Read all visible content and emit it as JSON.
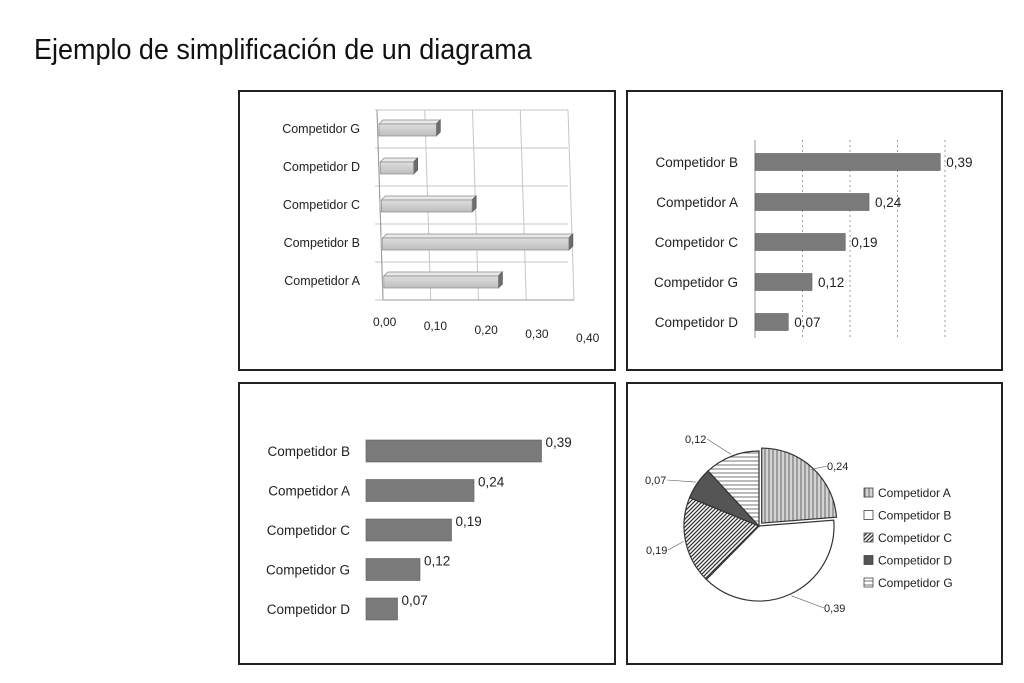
{
  "page": {
    "title": "Ejemplo de simplificación de un diagrama"
  },
  "chart_data": [
    {
      "type": "bar",
      "orientation": "horizontal",
      "style": "3d",
      "categories": [
        "Competidor G",
        "Competidor D",
        "Competidor C",
        "Competidor B",
        "Competidor A"
      ],
      "values": [
        0.12,
        0.07,
        0.19,
        0.39,
        0.24
      ],
      "xlim": [
        0,
        0.4
      ],
      "xticks": [
        "0,00",
        "0,10",
        "0,20",
        "0,30",
        "0,40"
      ],
      "grid": true,
      "color": "#c8c8c8"
    },
    {
      "type": "bar",
      "orientation": "horizontal",
      "categories": [
        "Competidor B",
        "Competidor A",
        "Competidor C",
        "Competidor G",
        "Competidor D"
      ],
      "values": [
        0.39,
        0.24,
        0.19,
        0.12,
        0.07
      ],
      "labels": [
        "0,39",
        "0,24",
        "0,19",
        "0,12",
        "0,07"
      ],
      "xlim": [
        0,
        0.4
      ],
      "grid": "dotted",
      "color": "#7a7a7a"
    },
    {
      "type": "bar",
      "orientation": "horizontal",
      "categories": [
        "Competidor B",
        "Competidor A",
        "Competidor C",
        "Competidor G",
        "Competidor D"
      ],
      "values": [
        0.39,
        0.24,
        0.19,
        0.12,
        0.07
      ],
      "labels": [
        "0,39",
        "0,24",
        "0,19",
        "0,12",
        "0,07"
      ],
      "xlim": [
        0,
        0.4
      ],
      "grid": false,
      "color": "#7a7a7a"
    },
    {
      "type": "pie",
      "categories": [
        "Competidor A",
        "Competidor B",
        "Competidor C",
        "Competidor D",
        "Competidor G"
      ],
      "values": [
        0.24,
        0.39,
        0.19,
        0.07,
        0.12
      ],
      "labels": [
        "0,24",
        "0,39",
        "0,19",
        "0,07",
        "0,12"
      ],
      "legend": "right",
      "patterns": [
        "vertical-lines",
        "white",
        "diagonal-hatch",
        "dark-solid",
        "horizontal-lines"
      ]
    }
  ]
}
